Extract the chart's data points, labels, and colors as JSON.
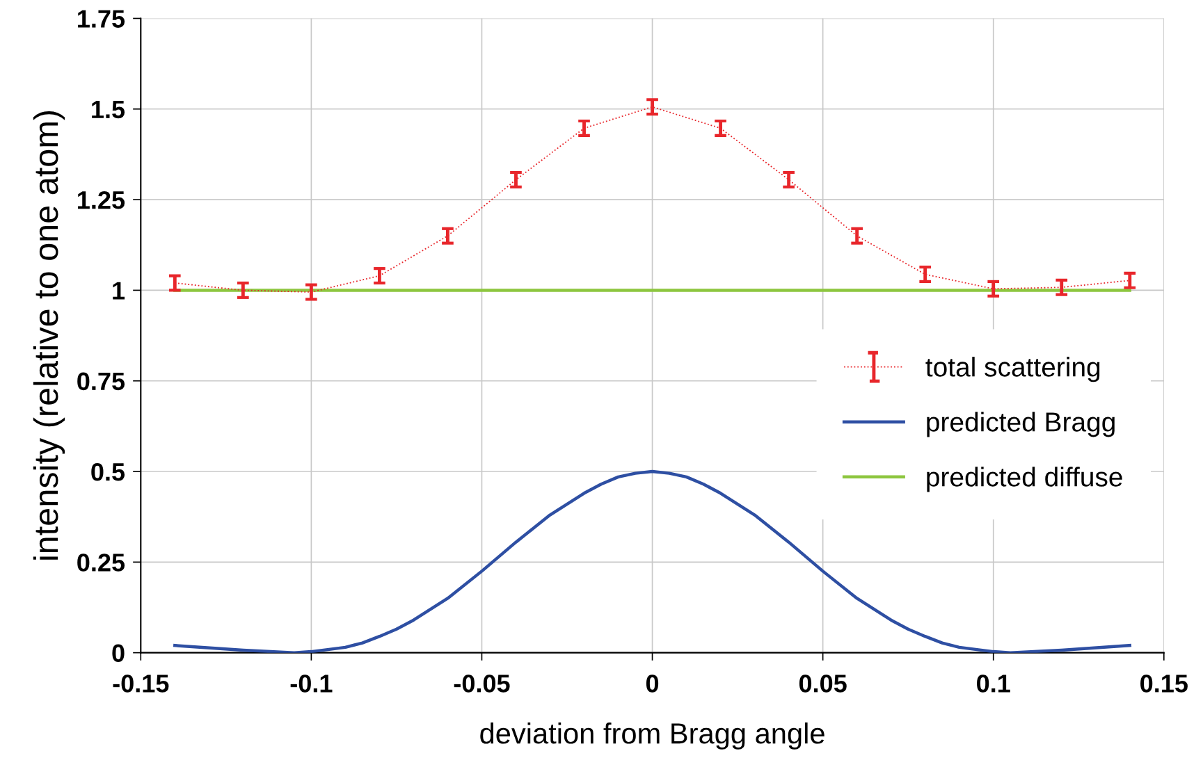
{
  "chart_data": {
    "type": "line",
    "xlabel": "deviation from Bragg angle",
    "ylabel": "intensity (relative to one atom)",
    "xlim": [
      -0.15,
      0.15
    ],
    "xticks": [
      -0.15,
      -0.1,
      -0.05,
      0,
      0.05,
      0.1,
      0.15
    ],
    "ylim": [
      0,
      1.75
    ],
    "yticks": [
      0,
      0.25,
      0.5,
      0.75,
      1,
      1.25,
      1.5,
      1.75
    ],
    "grid": true,
    "legend": "right",
    "marker": "none",
    "series": [
      {
        "name": "total scattering",
        "color": "#e8262b",
        "line_style": "dotted",
        "x": [
          -0.14,
          -0.12,
          -0.1,
          -0.08,
          -0.06,
          -0.04,
          -0.02,
          0,
          0.02,
          0.04,
          0.06,
          0.08,
          0.1,
          0.12,
          0.14
        ],
        "values": [
          1.02,
          1.0,
          0.995,
          1.04,
          1.15,
          1.305,
          1.447,
          1.506,
          1.447,
          1.305,
          1.15,
          1.044,
          1.004,
          1.008,
          1.027
        ],
        "errors": [
          0.02,
          0.02,
          0.02,
          0.02,
          0.02,
          0.02,
          0.02,
          0.02,
          0.02,
          0.02,
          0.02,
          0.02,
          0.02,
          0.02,
          0.02
        ]
      },
      {
        "name": "predicted Bragg",
        "color": "#2e4fa3",
        "line_style": "solid",
        "x": [
          -0.14,
          -0.12,
          -0.105,
          -0.1,
          -0.09,
          -0.085,
          -0.08,
          -0.075,
          -0.07,
          -0.06,
          -0.05,
          -0.04,
          -0.03,
          -0.02,
          -0.015,
          -0.01,
          -0.005,
          0,
          0.005,
          0.01,
          0.015,
          0.02,
          0.03,
          0.04,
          0.05,
          0.06,
          0.07,
          0.075,
          0.08,
          0.085,
          0.09,
          0.1,
          0.105,
          0.12,
          0.14
        ],
        "values": [
          0.02,
          0.007,
          0.0,
          0.003,
          0.015,
          0.027,
          0.045,
          0.065,
          0.09,
          0.15,
          0.225,
          0.305,
          0.38,
          0.44,
          0.465,
          0.485,
          0.495,
          0.5,
          0.495,
          0.485,
          0.465,
          0.44,
          0.38,
          0.305,
          0.225,
          0.15,
          0.09,
          0.065,
          0.045,
          0.027,
          0.015,
          0.003,
          0.0,
          0.007,
          0.02
        ]
      },
      {
        "name": "predicted diffuse",
        "color": "#8dc63f",
        "line_style": "solid",
        "x": [
          -0.14,
          0.14
        ],
        "values": [
          1,
          1
        ]
      }
    ]
  }
}
